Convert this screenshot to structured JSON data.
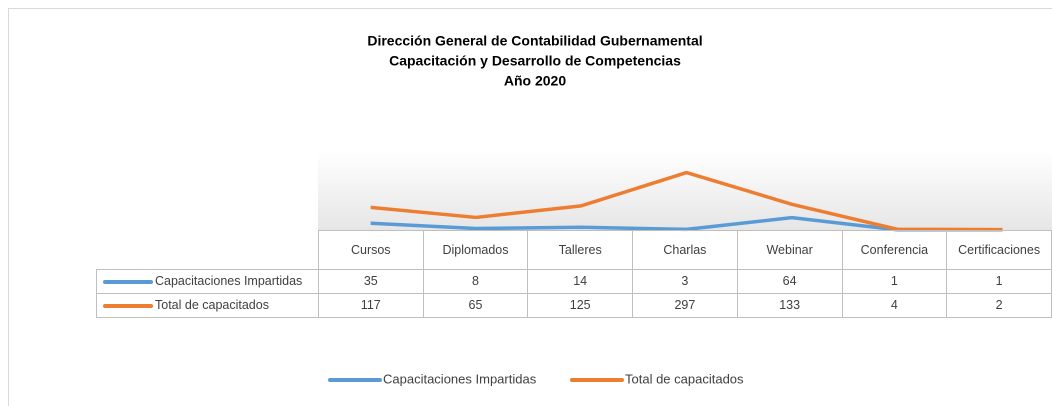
{
  "chart_data": {
    "type": "line",
    "title": [
      "Dirección General de Contabilidad Gubernamental",
      "Capacitación y Desarrollo de Competencias",
      "Año 2020"
    ],
    "categories": [
      "Cursos",
      "Diplomados",
      "Talleres",
      "Charlas",
      "Webinar",
      "Conferencia",
      "Certificaciones"
    ],
    "series": [
      {
        "name": "Capacitaciones Impartidas",
        "color": "#5b9bd5",
        "values": [
          35,
          8,
          14,
          3,
          64,
          1,
          1
        ]
      },
      {
        "name": "Total de capacitados",
        "color": "#ed7d31",
        "values": [
          117,
          65,
          125,
          297,
          133,
          4,
          2
        ]
      }
    ],
    "ylim": [
      0,
      300
    ]
  }
}
